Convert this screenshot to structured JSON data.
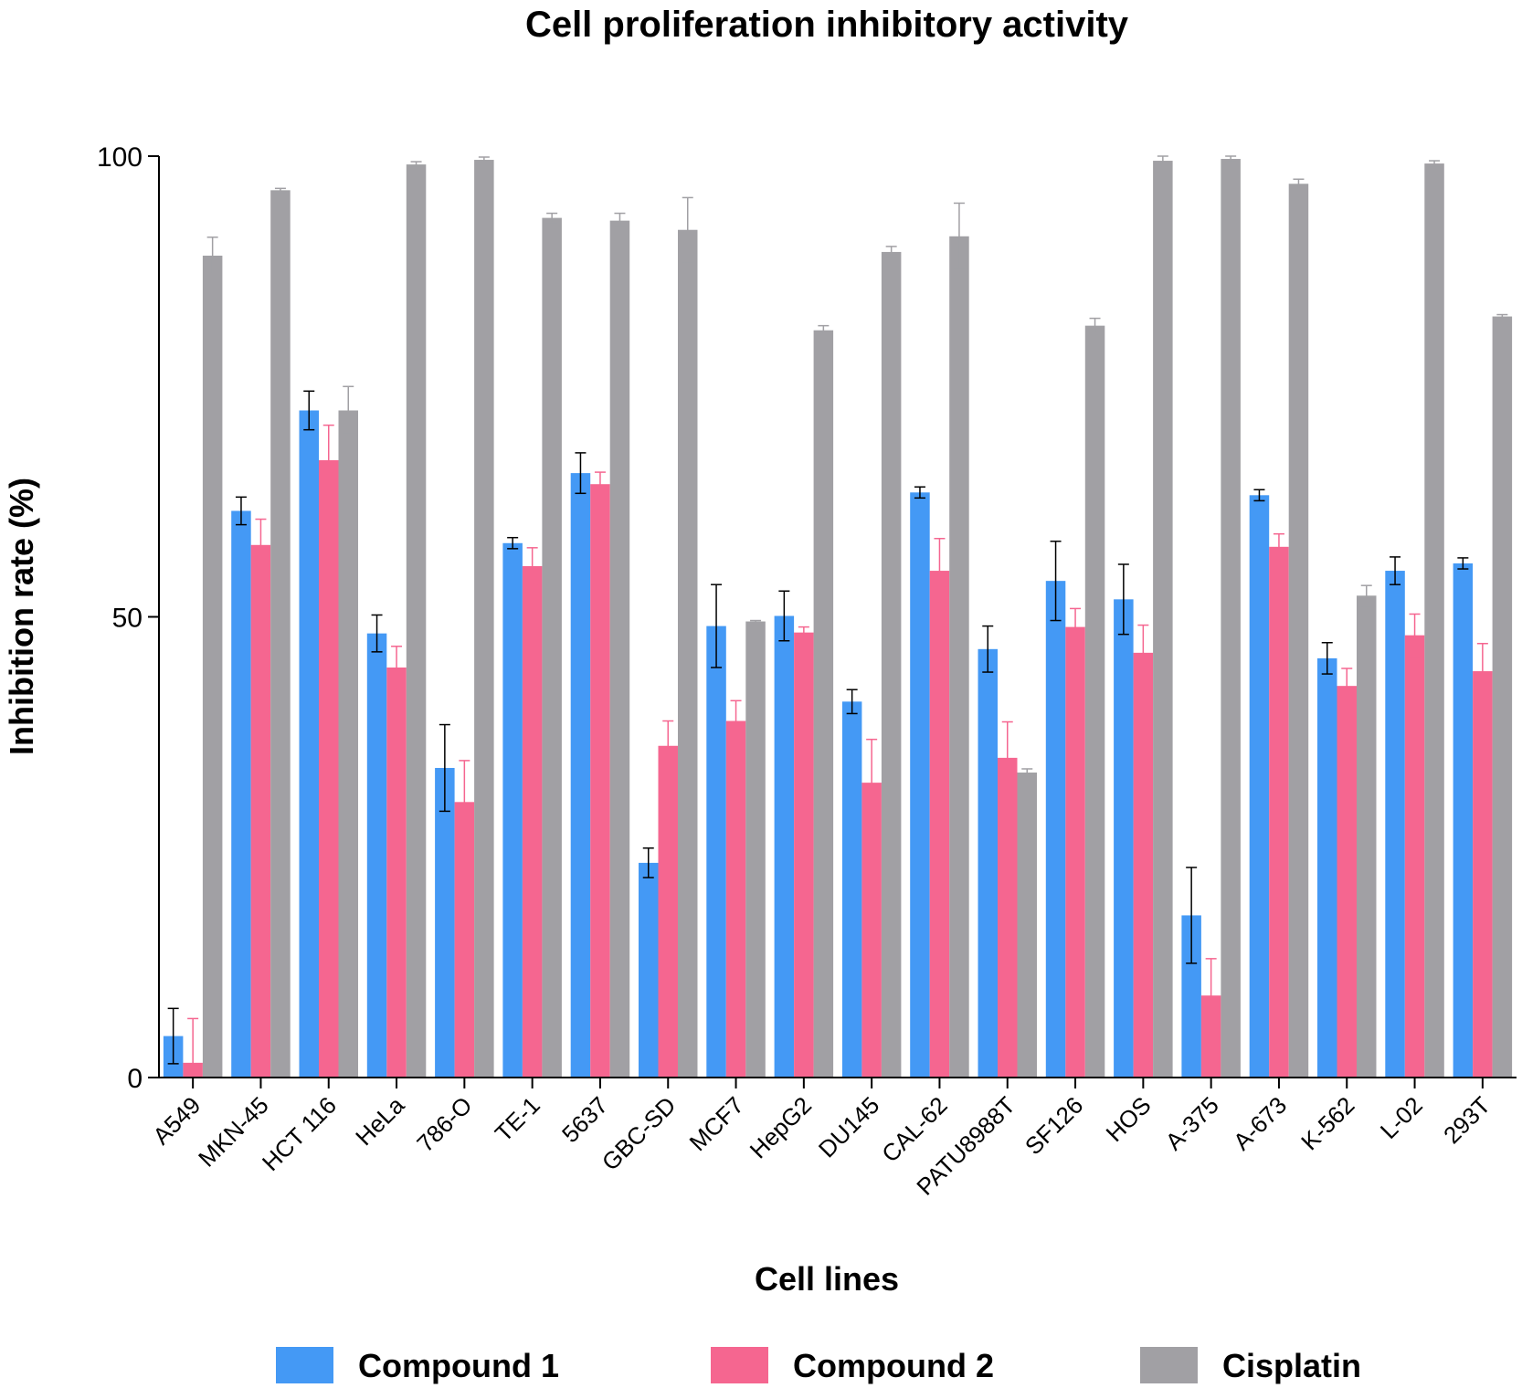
{
  "chart_data": {
    "type": "bar",
    "title": "Cell proliferation inhibitory activity",
    "xlabel": "Cell lines",
    "ylabel": "Inhibition rate (%)",
    "ylim": [
      0,
      100
    ],
    "yticks": [
      0,
      50,
      100
    ],
    "categories": [
      "A549",
      "MKN-45",
      "HCT 116",
      "HeLa",
      "786-O",
      "TE-1",
      "5637",
      "GBC-SD",
      "MCF7",
      "HepG2",
      "DU145",
      "CAL-62",
      "PATU8988T",
      "SF126",
      "HOS",
      "A-375",
      "A-673",
      "K-562",
      "L-02",
      "293T"
    ],
    "legend_position": "bottom",
    "series": [
      {
        "name": "Compound 1",
        "color": "#4499F5",
        "error_color": "#000000",
        "values": [
          4.5,
          61.5,
          72.4,
          48.2,
          33.6,
          58.0,
          65.6,
          23.3,
          49.0,
          50.1,
          40.8,
          63.5,
          46.5,
          53.9,
          51.9,
          17.6,
          63.2,
          45.5,
          55.0,
          55.8
        ],
        "errors": [
          3.0,
          1.5,
          2.1,
          2.0,
          4.7,
          0.6,
          2.2,
          1.6,
          4.5,
          2.7,
          1.3,
          0.6,
          2.5,
          4.3,
          3.8,
          5.2,
          0.6,
          1.7,
          1.5,
          0.6
        ]
      },
      {
        "name": "Compound 2",
        "color": "#F56690",
        "error_color": "#F56690",
        "values": [
          1.6,
          57.8,
          67.0,
          44.5,
          29.9,
          55.5,
          64.4,
          36.0,
          38.7,
          48.3,
          32.0,
          55.0,
          34.7,
          48.9,
          46.1,
          8.9,
          57.6,
          42.5,
          48.0,
          44.1
        ],
        "errors": [
          4.8,
          2.8,
          3.8,
          2.3,
          4.5,
          2.0,
          1.3,
          2.7,
          2.2,
          0.6,
          4.7,
          3.5,
          3.9,
          2.0,
          3.0,
          4.0,
          1.4,
          1.9,
          2.3,
          3.0
        ]
      },
      {
        "name": "Cisplatin",
        "color": "#A1A0A4",
        "error_color": "#A1A0A4",
        "values": [
          89.2,
          96.3,
          72.4,
          99.1,
          99.6,
          93.3,
          93.0,
          92.0,
          49.5,
          81.1,
          89.6,
          91.3,
          33.1,
          81.6,
          99.5,
          99.7,
          97.0,
          52.3,
          99.2,
          82.6
        ],
        "errors": [
          2.0,
          0.2,
          2.6,
          0.3,
          0.3,
          0.5,
          0.8,
          3.5,
          0.1,
          0.5,
          0.6,
          3.6,
          0.4,
          0.8,
          0.5,
          0.3,
          0.5,
          1.1,
          0.3,
          0.2
        ]
      }
    ]
  }
}
